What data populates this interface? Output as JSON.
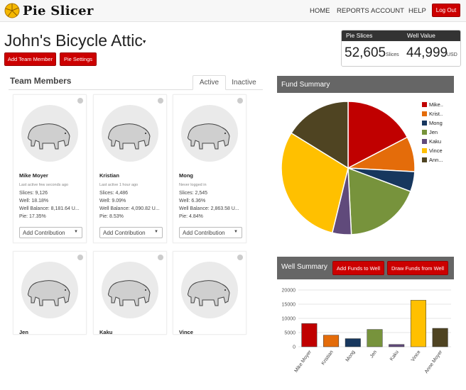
{
  "app": {
    "name": "Pie Slicer"
  },
  "nav": {
    "items": [
      "HOME",
      "REPORTS",
      "ACCOUNT",
      "HELP"
    ],
    "logout": "Log Out"
  },
  "page": {
    "title": "John's Bicycle Attic",
    "add_member": "Add Team Member",
    "pie_settings": "Pie Settings"
  },
  "stats": {
    "slices_label": "Pie Slices",
    "well_label": "Well Value",
    "slices_value": "52,605",
    "slices_unit": "Slices",
    "well_value": "44,999",
    "well_unit": "USD"
  },
  "team": {
    "title": "Team Members",
    "tab_active": "Active",
    "tab_inactive": "Inactive",
    "members": [
      {
        "name": "Mike Moyer",
        "last_active": "Last active few seconds ago",
        "slices": "Slices: 9,126",
        "well": "Well: 18.18%",
        "balance": "Well Balance: 8,181.64 U...",
        "pie": "Pie: 17.35%",
        "action": "Add Contribution"
      },
      {
        "name": "Kristian",
        "last_active": "Last active 1 hour ago",
        "slices": "Slices: 4,486",
        "well": "Well: 9.09%",
        "balance": "Well Balance: 4,090.82 U...",
        "pie": "Pie: 8.53%",
        "action": "Add Contribution"
      },
      {
        "name": "Mong",
        "last_active": "Never logged in",
        "slices": "Slices: 2,545",
        "well": "Well: 6.36%",
        "balance": "Well Balance: 2,863.58 U...",
        "pie": "Pie: 4.84%",
        "action": "Add Contribution"
      },
      {
        "name": "Jen"
      },
      {
        "name": "Kaku"
      },
      {
        "name": "Vince"
      }
    ]
  },
  "fund_summary": {
    "title": "Fund Summary",
    "legend": [
      "Mike..",
      "Krist..",
      "Mong",
      "Jen",
      "Kaku",
      "Vince",
      "Ann..."
    ],
    "colors": [
      "#c00000",
      "#e46c0a",
      "#17375e",
      "#77933c",
      "#604a7b",
      "#ffc000",
      "#4f4422"
    ]
  },
  "well_summary": {
    "title": "Well Summary",
    "add_funds": "Add Funds to Well",
    "draw_funds": "Draw Funds from Well"
  },
  "chart_data": [
    {
      "type": "pie",
      "title": "Fund Summary",
      "categories": [
        "Mike..",
        "Krist..",
        "Mong",
        "Jen",
        "Kaku",
        "Vince",
        "Ann..."
      ],
      "values": [
        17.35,
        8.53,
        4.84,
        18.5,
        4.6,
        30.0,
        16.2
      ]
    },
    {
      "type": "bar",
      "title": "Well Summary",
      "categories": [
        "Mike Moyer",
        "Kristian",
        "Mong",
        "Jen",
        "Kaku",
        "Vince",
        "Anne Moyer"
      ],
      "values": [
        8181.64,
        4090.82,
        2863.58,
        6100,
        800,
        16400,
        6500
      ],
      "ylim": [
        0,
        20000
      ],
      "yticks": [
        "0",
        "5000",
        "10000",
        "15000",
        "20000"
      ],
      "grid": true
    }
  ]
}
